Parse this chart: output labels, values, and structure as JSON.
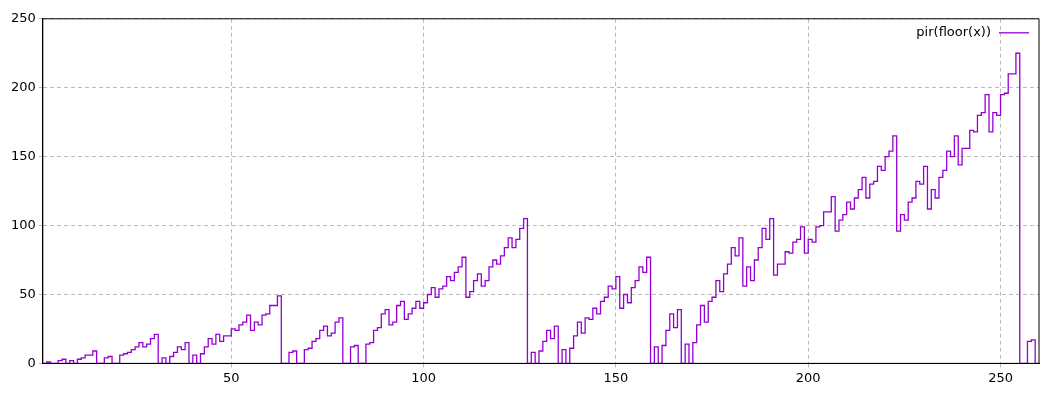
{
  "chart_data": {
    "type": "step",
    "xlim": [
      1,
      260
    ],
    "ylim": [
      0,
      250
    ],
    "xticks": [
      50,
      100,
      150,
      200,
      250
    ],
    "yticks": [
      0,
      50,
      100,
      150,
      200,
      250
    ],
    "grid": true,
    "legend": "top right",
    "marker": "none",
    "x": [
      1,
      2,
      3,
      4,
      5,
      6,
      7,
      8,
      9,
      10,
      11,
      12,
      13,
      14,
      15,
      16,
      17,
      18,
      19,
      20,
      21,
      22,
      23,
      24,
      25,
      26,
      27,
      28,
      29,
      30,
      31,
      32,
      33,
      34,
      35,
      36,
      37,
      38,
      39,
      40,
      41,
      42,
      43,
      44,
      45,
      46,
      47,
      48,
      49,
      50,
      51,
      52,
      53,
      54,
      55,
      56,
      57,
      58,
      59,
      60,
      61,
      62,
      63,
      64,
      65,
      66,
      67,
      68,
      69,
      70,
      71,
      72,
      73,
      74,
      75,
      76,
      77,
      78,
      79,
      80,
      81,
      82,
      83,
      84,
      85,
      86,
      87,
      88,
      89,
      90,
      91,
      92,
      93,
      94,
      95,
      96,
      97,
      98,
      99,
      100,
      101,
      102,
      103,
      104,
      105,
      106,
      107,
      108,
      109,
      110,
      111,
      112,
      113,
      114,
      115,
      116,
      117,
      118,
      119,
      120,
      121,
      122,
      123,
      124,
      125,
      126,
      127,
      128,
      129,
      130,
      131,
      132,
      133,
      134,
      135,
      136,
      137,
      138,
      139,
      140,
      141,
      142,
      143,
      144,
      145,
      146,
      147,
      148,
      149,
      150,
      151,
      152,
      153,
      154,
      155,
      156,
      157,
      158,
      159,
      160,
      161,
      162,
      163,
      164,
      165,
      166,
      167,
      168,
      169,
      170,
      171,
      172,
      173,
      174,
      175,
      176,
      177,
      178,
      179,
      180,
      181,
      182,
      183,
      184,
      185,
      186,
      187,
      188,
      189,
      190,
      191,
      192,
      193,
      194,
      195,
      196,
      197,
      198,
      199,
      200,
      201,
      202,
      203,
      204,
      205,
      206,
      207,
      208,
      209,
      210,
      211,
      212,
      213,
      214,
      215,
      216,
      217,
      218,
      219,
      220,
      221,
      222,
      223,
      224,
      225,
      226,
      227,
      228,
      229,
      230,
      231,
      232,
      233,
      234,
      235,
      236,
      237,
      238,
      239,
      240,
      241,
      242,
      243,
      244,
      245,
      246,
      247,
      248,
      249,
      250,
      251,
      252,
      253,
      254,
      255,
      256,
      257,
      258,
      259,
      260
    ],
    "series": [
      {
        "name": "pir(floor(x))",
        "color": "#9400d3",
        "values": [
          0,
          0,
          1,
          0,
          0,
          2,
          3,
          0,
          2,
          0,
          3,
          4,
          6,
          6,
          9,
          0,
          0,
          4,
          5,
          0,
          0,
          6,
          7,
          8,
          10,
          12,
          15,
          12,
          14,
          18,
          21,
          0,
          4,
          0,
          5,
          8,
          12,
          10,
          15,
          0,
          6,
          0,
          7,
          12,
          18,
          14,
          21,
          16,
          20,
          20,
          25,
          24,
          28,
          30,
          35,
          24,
          30,
          28,
          35,
          36,
          42,
          42,
          49,
          0,
          0,
          8,
          9,
          0,
          0,
          10,
          11,
          16,
          18,
          24,
          27,
          20,
          22,
          30,
          33,
          0,
          0,
          12,
          13,
          0,
          0,
          14,
          15,
          24,
          26,
          36,
          39,
          28,
          30,
          42,
          45,
          32,
          36,
          40,
          45,
          40,
          44,
          50,
          55,
          48,
          54,
          56,
          63,
          60,
          66,
          70,
          77,
          48,
          52,
          60,
          65,
          56,
          60,
          70,
          75,
          72,
          78,
          84,
          91,
          84,
          90,
          98,
          105,
          0,
          8,
          0,
          9,
          16,
          24,
          18,
          27,
          0,
          10,
          0,
          11,
          20,
          30,
          22,
          33,
          32,
          40,
          36,
          45,
          48,
          56,
          54,
          63,
          40,
          50,
          44,
          55,
          60,
          70,
          66,
          77,
          0,
          12,
          0,
          13,
          24,
          36,
          26,
          39,
          0,
          14,
          0,
          15,
          28,
          42,
          30,
          45,
          48,
          60,
          52,
          65,
          72,
          84,
          78,
          91,
          56,
          70,
          60,
          75,
          84,
          98,
          90,
          105,
          64,
          72,
          72,
          81,
          80,
          88,
          90,
          99,
          80,
          90,
          88,
          99,
          100,
          110,
          110,
          121,
          96,
          104,
          108,
          117,
          112,
          120,
          126,
          135,
          120,
          130,
          132,
          143,
          140,
          150,
          154,
          165,
          96,
          108,
          104,
          117,
          120,
          132,
          130,
          143,
          112,
          126,
          120,
          135,
          140,
          154,
          150,
          165,
          144,
          156,
          156,
          169,
          168,
          180,
          182,
          195,
          168,
          182,
          180,
          195,
          196,
          210,
          210,
          225,
          0,
          0,
          16,
          17,
          0
        ]
      }
    ]
  }
}
